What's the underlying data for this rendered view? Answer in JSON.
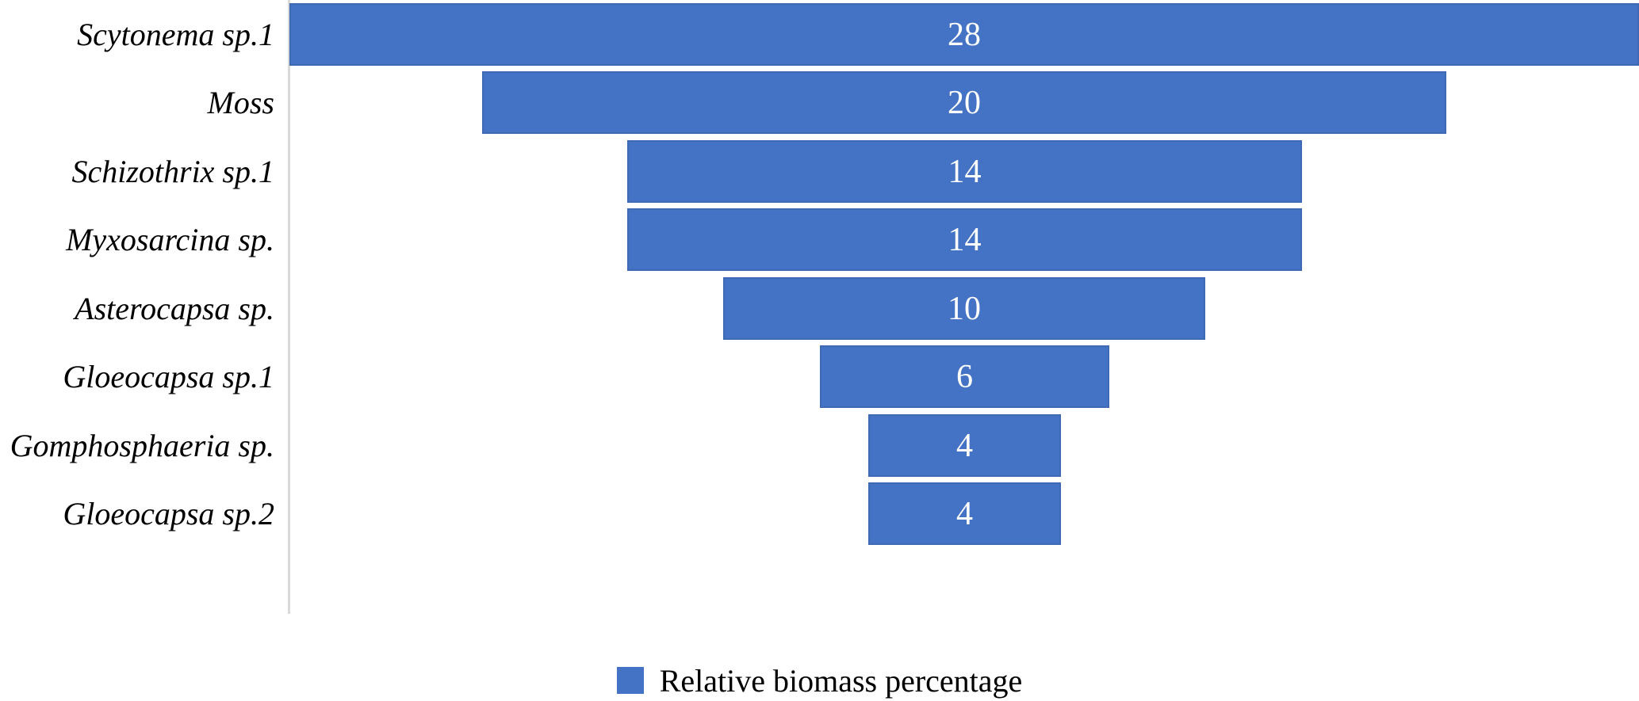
{
  "chart_data": {
    "type": "bar",
    "subtype": "funnel",
    "title": "",
    "xlabel": "",
    "ylabel": "",
    "categories": [
      "Scytonema sp.1",
      "Moss",
      "Schizothrix sp.1",
      "Myxosarcina sp.",
      "Asterocapsa sp.",
      "Gloeocapsa sp.1",
      "Gomphosphaeria sp.",
      "Gloeocapsa sp.2"
    ],
    "series": [
      {
        "name": "Relative biomass percentage",
        "values": [
          28,
          20,
          14,
          14,
          10,
          6,
          4,
          4
        ]
      }
    ],
    "data_labels": [
      "28",
      "20",
      "14",
      "14",
      "10",
      "6",
      "4",
      "4"
    ],
    "xlim": [
      0,
      28
    ],
    "bars_centered": true,
    "grid": false,
    "bar_color": "#4472C4",
    "bar_border_color": "#3e69b3",
    "value_label_color": "#ffffff",
    "axis_line_color": "#d9d9d9",
    "legend_position": "bottom"
  },
  "legend": {
    "label": "Relative biomass percentage",
    "swatch_color": "#4472C4"
  }
}
